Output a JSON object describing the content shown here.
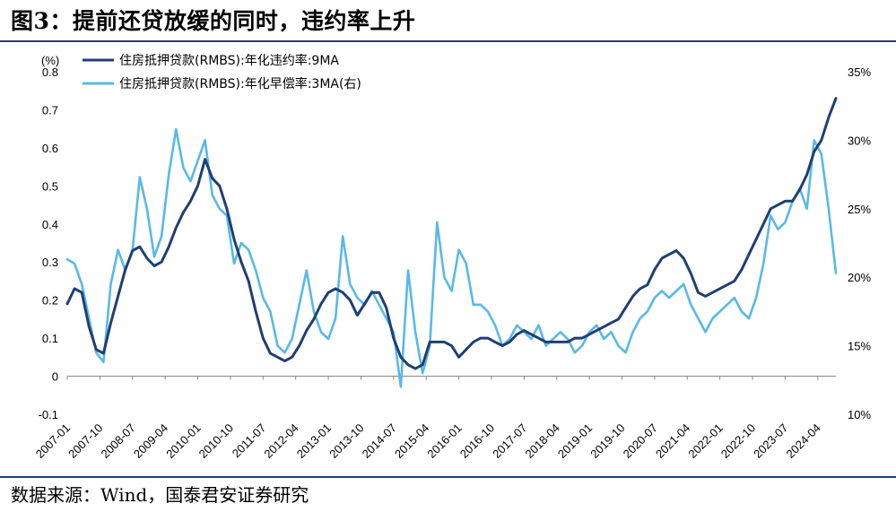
{
  "figure": {
    "title": "图3：提前还贷放缓的同时，违约率上升",
    "source": "数据来源：Wind，国泰君安证券研究",
    "left_unit": "(%)"
  },
  "chart_data": {
    "type": "line",
    "x_tick_labels": [
      "2007-01",
      "2007-10",
      "2008-07",
      "2009-04",
      "2010-01",
      "2010-10",
      "2011-07",
      "2012-04",
      "2013-01",
      "2013-10",
      "2014-07",
      "2015-04",
      "2016-01",
      "2016-10",
      "2017-07",
      "2018-04",
      "2019-01",
      "2019-10",
      "2020-07",
      "2021-04",
      "2022-01",
      "2022-10",
      "2023-07",
      "2024-04"
    ],
    "x_range": [
      "2007-01",
      "2024-09"
    ],
    "ylim_left": [
      -0.1,
      0.8
    ],
    "yticks_left": [
      "-0.1",
      "0",
      "0.1",
      "0.2",
      "0.3",
      "0.4",
      "0.5",
      "0.6",
      "0.7",
      "0.8"
    ],
    "ylim_right": [
      10,
      35
    ],
    "yticks_right": [
      "10%",
      "15%",
      "20%",
      "25%",
      "30%",
      "35%"
    ],
    "grid": false,
    "legend_placement": "top-left",
    "series": [
      {
        "name": "住房抵押贷款(RMBS):年化违约率:9MA",
        "axis": "left",
        "color": "#1f3f73",
        "points": [
          [
            "2007-01",
            0.19
          ],
          [
            "2007-03",
            0.23
          ],
          [
            "2007-05",
            0.22
          ],
          [
            "2007-07",
            0.13
          ],
          [
            "2007-09",
            0.07
          ],
          [
            "2007-11",
            0.06
          ],
          [
            "2008-01",
            0.14
          ],
          [
            "2008-03",
            0.21
          ],
          [
            "2008-05",
            0.28
          ],
          [
            "2008-07",
            0.33
          ],
          [
            "2008-09",
            0.34
          ],
          [
            "2008-11",
            0.31
          ],
          [
            "2009-01",
            0.29
          ],
          [
            "2009-03",
            0.3
          ],
          [
            "2009-05",
            0.34
          ],
          [
            "2009-07",
            0.39
          ],
          [
            "2009-09",
            0.43
          ],
          [
            "2009-11",
            0.46
          ],
          [
            "2010-01",
            0.5
          ],
          [
            "2010-03",
            0.57
          ],
          [
            "2010-05",
            0.52
          ],
          [
            "2010-07",
            0.5
          ],
          [
            "2010-09",
            0.44
          ],
          [
            "2010-11",
            0.36
          ],
          [
            "2011-01",
            0.3
          ],
          [
            "2011-03",
            0.25
          ],
          [
            "2011-05",
            0.17
          ],
          [
            "2011-07",
            0.1
          ],
          [
            "2011-09",
            0.06
          ],
          [
            "2011-11",
            0.05
          ],
          [
            "2012-01",
            0.04
          ],
          [
            "2012-03",
            0.05
          ],
          [
            "2012-05",
            0.08
          ],
          [
            "2012-07",
            0.12
          ],
          [
            "2012-09",
            0.15
          ],
          [
            "2012-11",
            0.19
          ],
          [
            "2013-01",
            0.22
          ],
          [
            "2013-03",
            0.23
          ],
          [
            "2013-05",
            0.22
          ],
          [
            "2013-07",
            0.2
          ],
          [
            "2013-09",
            0.16
          ],
          [
            "2013-11",
            0.19
          ],
          [
            "2014-01",
            0.22
          ],
          [
            "2014-03",
            0.22
          ],
          [
            "2014-05",
            0.18
          ],
          [
            "2014-07",
            0.1
          ],
          [
            "2014-09",
            0.05
          ],
          [
            "2014-11",
            0.03
          ],
          [
            "2015-01",
            0.02
          ],
          [
            "2015-03",
            0.03
          ],
          [
            "2015-05",
            0.09
          ],
          [
            "2015-07",
            0.09
          ],
          [
            "2015-09",
            0.09
          ],
          [
            "2015-11",
            0.08
          ],
          [
            "2016-01",
            0.05
          ],
          [
            "2016-03",
            0.07
          ],
          [
            "2016-05",
            0.09
          ],
          [
            "2016-07",
            0.1
          ],
          [
            "2016-09",
            0.1
          ],
          [
            "2016-11",
            0.09
          ],
          [
            "2017-01",
            0.08
          ],
          [
            "2017-03",
            0.09
          ],
          [
            "2017-05",
            0.11
          ],
          [
            "2017-07",
            0.12
          ],
          [
            "2017-09",
            0.11
          ],
          [
            "2017-11",
            0.1
          ],
          [
            "2018-01",
            0.09
          ],
          [
            "2018-03",
            0.09
          ],
          [
            "2018-05",
            0.09
          ],
          [
            "2018-07",
            0.09
          ],
          [
            "2018-09",
            0.1
          ],
          [
            "2018-11",
            0.1
          ],
          [
            "2019-01",
            0.11
          ],
          [
            "2019-03",
            0.12
          ],
          [
            "2019-05",
            0.13
          ],
          [
            "2019-07",
            0.14
          ],
          [
            "2019-09",
            0.15
          ],
          [
            "2019-11",
            0.18
          ],
          [
            "2020-01",
            0.21
          ],
          [
            "2020-03",
            0.23
          ],
          [
            "2020-05",
            0.24
          ],
          [
            "2020-07",
            0.28
          ],
          [
            "2020-09",
            0.31
          ],
          [
            "2020-11",
            0.32
          ],
          [
            "2021-01",
            0.33
          ],
          [
            "2021-03",
            0.31
          ],
          [
            "2021-05",
            0.27
          ],
          [
            "2021-07",
            0.22
          ],
          [
            "2021-09",
            0.21
          ],
          [
            "2021-11",
            0.22
          ],
          [
            "2022-01",
            0.23
          ],
          [
            "2022-03",
            0.24
          ],
          [
            "2022-05",
            0.25
          ],
          [
            "2022-07",
            0.28
          ],
          [
            "2022-09",
            0.32
          ],
          [
            "2022-11",
            0.36
          ],
          [
            "2023-01",
            0.4
          ],
          [
            "2023-03",
            0.44
          ],
          [
            "2023-05",
            0.45
          ],
          [
            "2023-07",
            0.46
          ],
          [
            "2023-09",
            0.46
          ],
          [
            "2023-11",
            0.49
          ],
          [
            "2024-01",
            0.53
          ],
          [
            "2024-03",
            0.59
          ],
          [
            "2024-05",
            0.62
          ],
          [
            "2024-07",
            0.68
          ],
          [
            "2024-09",
            0.73
          ]
        ]
      },
      {
        "name": "住房抵押贷款(RMBS):年化早偿率:3MA(右)",
        "axis": "right",
        "color": "#58b9e8",
        "points": [
          [
            "2007-01",
            21.3
          ],
          [
            "2007-03",
            21.0
          ],
          [
            "2007-05",
            19.5
          ],
          [
            "2007-07",
            17.0
          ],
          [
            "2007-09",
            14.5
          ],
          [
            "2007-11",
            13.8
          ],
          [
            "2008-01",
            19.5
          ],
          [
            "2008-03",
            22.0
          ],
          [
            "2008-05",
            20.5
          ],
          [
            "2008-07",
            22.0
          ],
          [
            "2008-09",
            27.3
          ],
          [
            "2008-11",
            25.0
          ],
          [
            "2009-01",
            21.5
          ],
          [
            "2009-03",
            23.0
          ],
          [
            "2009-05",
            27.5
          ],
          [
            "2009-07",
            30.8
          ],
          [
            "2009-09",
            28.0
          ],
          [
            "2009-11",
            27.0
          ],
          [
            "2010-01",
            28.5
          ],
          [
            "2010-03",
            30.0
          ],
          [
            "2010-05",
            26.0
          ],
          [
            "2010-07",
            25.0
          ],
          [
            "2010-09",
            24.5
          ],
          [
            "2010-11",
            21.0
          ],
          [
            "2011-01",
            22.5
          ],
          [
            "2011-03",
            22.0
          ],
          [
            "2011-05",
            20.5
          ],
          [
            "2011-07",
            18.5
          ],
          [
            "2011-09",
            17.5
          ],
          [
            "2011-11",
            15.0
          ],
          [
            "2012-01",
            14.5
          ],
          [
            "2012-03",
            15.5
          ],
          [
            "2012-05",
            18.0
          ],
          [
            "2012-07",
            20.5
          ],
          [
            "2012-09",
            17.5
          ],
          [
            "2012-11",
            16.0
          ],
          [
            "2013-01",
            15.5
          ],
          [
            "2013-03",
            17.0
          ],
          [
            "2013-05",
            23.0
          ],
          [
            "2013-07",
            19.5
          ],
          [
            "2013-09",
            18.5
          ],
          [
            "2013-11",
            18.0
          ],
          [
            "2014-01",
            19.0
          ],
          [
            "2014-03",
            18.0
          ],
          [
            "2014-05",
            17.0
          ],
          [
            "2014-07",
            16.0
          ],
          [
            "2014-09",
            12.0
          ],
          [
            "2014-11",
            20.5
          ],
          [
            "2015-01",
            16.0
          ],
          [
            "2015-03",
            13.0
          ],
          [
            "2015-05",
            15.0
          ],
          [
            "2015-07",
            24.0
          ],
          [
            "2015-09",
            20.0
          ],
          [
            "2015-11",
            19.0
          ],
          [
            "2016-01",
            22.0
          ],
          [
            "2016-03",
            21.0
          ],
          [
            "2016-05",
            18.0
          ],
          [
            "2016-07",
            18.0
          ],
          [
            "2016-09",
            17.5
          ],
          [
            "2016-11",
            16.5
          ],
          [
            "2017-01",
            15.0
          ],
          [
            "2017-03",
            15.5
          ],
          [
            "2017-05",
            16.5
          ],
          [
            "2017-07",
            16.0
          ],
          [
            "2017-09",
            15.5
          ],
          [
            "2017-11",
            16.5
          ],
          [
            "2018-01",
            15.0
          ],
          [
            "2018-03",
            15.5
          ],
          [
            "2018-05",
            16.0
          ],
          [
            "2018-07",
            15.5
          ],
          [
            "2018-09",
            14.5
          ],
          [
            "2018-11",
            15.0
          ],
          [
            "2019-01",
            16.0
          ],
          [
            "2019-03",
            16.5
          ],
          [
            "2019-05",
            15.5
          ],
          [
            "2019-07",
            16.0
          ],
          [
            "2019-09",
            15.0
          ],
          [
            "2019-11",
            14.5
          ],
          [
            "2020-01",
            16.0
          ],
          [
            "2020-03",
            17.0
          ],
          [
            "2020-05",
            17.5
          ],
          [
            "2020-07",
            18.5
          ],
          [
            "2020-09",
            19.0
          ],
          [
            "2020-11",
            18.5
          ],
          [
            "2021-01",
            19.0
          ],
          [
            "2021-03",
            19.5
          ],
          [
            "2021-05",
            18.0
          ],
          [
            "2021-07",
            17.0
          ],
          [
            "2021-09",
            16.0
          ],
          [
            "2021-11",
            17.0
          ],
          [
            "2022-01",
            17.5
          ],
          [
            "2022-03",
            18.0
          ],
          [
            "2022-05",
            18.5
          ],
          [
            "2022-07",
            17.5
          ],
          [
            "2022-09",
            17.0
          ],
          [
            "2022-11",
            18.5
          ],
          [
            "2023-01",
            21.0
          ],
          [
            "2023-03",
            24.5
          ],
          [
            "2023-05",
            23.5
          ],
          [
            "2023-07",
            24.0
          ],
          [
            "2023-09",
            25.5
          ],
          [
            "2023-11",
            26.5
          ],
          [
            "2024-01",
            25.0
          ],
          [
            "2024-03",
            30.0
          ],
          [
            "2024-05",
            29.0
          ],
          [
            "2024-07",
            25.0
          ],
          [
            "2024-09",
            20.3
          ]
        ]
      }
    ]
  }
}
